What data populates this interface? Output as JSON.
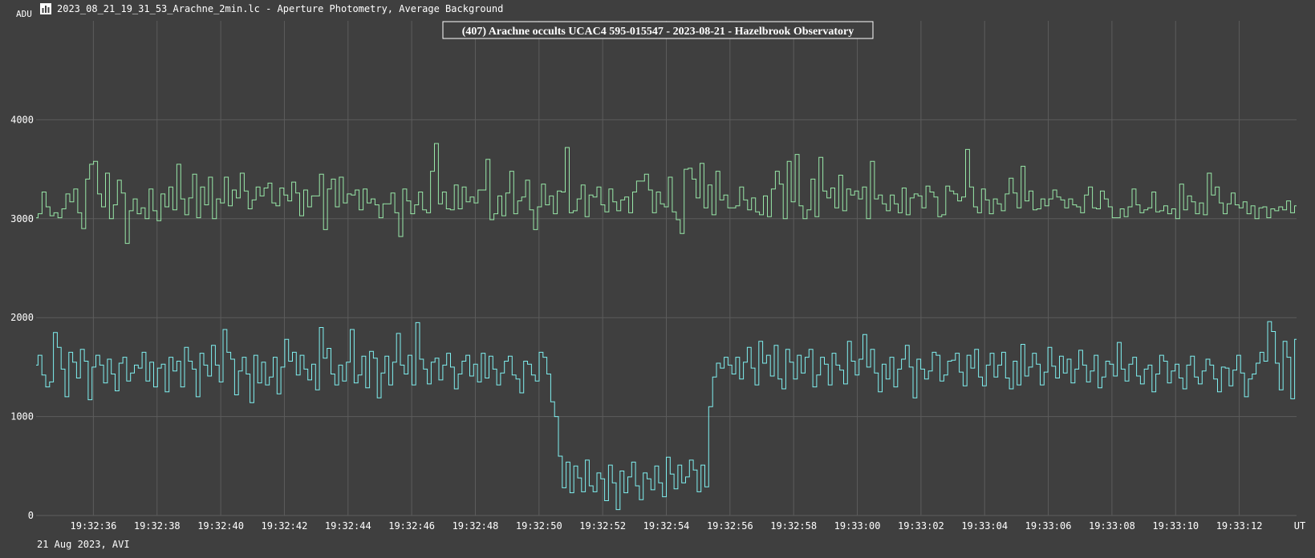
{
  "window": {
    "title": "2023_08_21_19_31_53_Arachne_2min.lc - Aperture Photometry, Average Background",
    "footer": "21 Aug 2023, AVI"
  },
  "icons": {
    "app_icon": "lightcurve-chart-icon"
  },
  "colors": {
    "background": "#3f3f3f",
    "grid": "#5c5c5c",
    "series_target": "#7ff0f0",
    "series_comparison": "#98e8a8",
    "text": "#ffffff"
  },
  "chart_data": {
    "type": "line",
    "title": "(407) Arachne occults UCAC4 595-015547 - 2023-08-21 - Hazelbrook Observatory",
    "ylabel": "ADU",
    "xlabel": "UT",
    "ylim": [
      0,
      5000
    ],
    "xlim": [
      "19:32:34.2",
      "19:33:13.8"
    ],
    "y_ticks": [
      0,
      1000,
      2000,
      3000,
      4000
    ],
    "x_ticks": [
      "19:32:36",
      "19:32:38",
      "19:32:40",
      "19:32:42",
      "19:32:44",
      "19:32:46",
      "19:32:48",
      "19:32:50",
      "19:32:52",
      "19:32:54",
      "19:32:56",
      "19:32:58",
      "19:33:00",
      "19:33:02",
      "19:33:04",
      "19:33:06",
      "19:33:08",
      "19:33:10",
      "19:33:12"
    ],
    "grid": true,
    "series": [
      {
        "key": "comparison",
        "x_start": "19:32:34.2",
        "x_end": "19:33:13.8",
        "values": [
          3010,
          3050,
          3270,
          3120,
          3030,
          3060,
          3010,
          3100,
          3250,
          3170,
          3300,
          3060,
          2900,
          3400,
          3550,
          3580,
          3250,
          3120,
          3460,
          3000,
          3140,
          3390,
          3260,
          2750,
          3080,
          3200,
          3050,
          3110,
          3000,
          3300,
          3080,
          2980,
          3250,
          3120,
          3320,
          3090,
          3550,
          3200,
          3040,
          3210,
          3450,
          3010,
          3320,
          3140,
          3420,
          3000,
          3200,
          3160,
          3420,
          3130,
          3290,
          3210,
          3460,
          3280,
          3100,
          3190,
          3320,
          3230,
          3310,
          3360,
          3160,
          3130,
          3310,
          3240,
          3180,
          3370,
          3260,
          3030,
          3290,
          3120,
          3230,
          3230,
          3450,
          2890,
          3300,
          3400,
          3120,
          3420,
          3160,
          3250,
          3240,
          3290,
          3090,
          3300,
          3160,
          3200,
          3140,
          3010,
          3150,
          3150,
          3260,
          3060,
          2820,
          3300,
          3180,
          3050,
          3140,
          3270,
          3090,
          3060,
          3480,
          3760,
          3150,
          3270,
          3100,
          3090,
          3340,
          3100,
          3320,
          3170,
          3220,
          3160,
          3290,
          3290,
          3600,
          2990,
          3050,
          3230,
          3030,
          3260,
          3480,
          3050,
          3180,
          3220,
          3390,
          3090,
          2890,
          3120,
          3350,
          3140,
          3230,
          3050,
          3280,
          3270,
          3720,
          3060,
          3080,
          3200,
          3340,
          3020,
          3240,
          3220,
          3320,
          3140,
          3070,
          3300,
          3170,
          3080,
          3190,
          3220,
          3060,
          3270,
          3380,
          3380,
          3450,
          3290,
          3060,
          3270,
          3150,
          3120,
          3420,
          3070,
          2990,
          2850,
          3500,
          3510,
          3400,
          3210,
          3560,
          3110,
          3340,
          3040,
          3480,
          3190,
          3240,
          3110,
          3110,
          3130,
          3320,
          3190,
          3090,
          3210,
          3070,
          3040,
          3230,
          3020,
          3300,
          3480,
          3350,
          3000,
          3580,
          3170,
          3650,
          3130,
          3000,
          3090,
          3400,
          3020,
          3620,
          3280,
          3210,
          3310,
          3110,
          3440,
          3080,
          3300,
          3240,
          3280,
          3200,
          3320,
          3000,
          3580,
          3200,
          3240,
          3150,
          3080,
          3240,
          3150,
          3060,
          3310,
          3040,
          3210,
          3250,
          3230,
          3110,
          3330,
          3270,
          3220,
          3020,
          3040,
          3330,
          3280,
          3250,
          3180,
          3220,
          3700,
          3320,
          3120,
          3060,
          3300,
          3190,
          3050,
          3200,
          3150,
          3080,
          3250,
          3410,
          3260,
          3110,
          3530,
          3180,
          3280,
          3090,
          3100,
          3200,
          3130,
          3200,
          3290,
          3220,
          3190,
          3110,
          3200,
          3140,
          3120,
          3060,
          3240,
          3320,
          3110,
          3100,
          3280,
          3200,
          3120,
          3010,
          3010,
          3100,
          3020,
          3120,
          3300,
          3140,
          3060,
          3090,
          3110,
          3270,
          3070,
          3080,
          3130,
          3050,
          3100,
          3000,
          3350,
          3090,
          3230,
          3170,
          3050,
          3160,
          3040,
          3460,
          3240,
          3320,
          3160,
          3050,
          3150,
          3260,
          3140,
          3110,
          3170,
          3050,
          3130,
          3000,
          3110,
          3120,
          3010,
          3100,
          3080,
          3120,
          3090,
          3180,
          3060,
          3130
        ]
      },
      {
        "key": "target",
        "x_start": "19:32:34.2",
        "x_end": "19:33:13.8",
        "values": [
          1520,
          1620,
          1420,
          1300,
          1350,
          1850,
          1700,
          1480,
          1200,
          1650,
          1550,
          1390,
          1680,
          1560,
          1170,
          1500,
          1620,
          1520,
          1340,
          1580,
          1430,
          1260,
          1540,
          1600,
          1360,
          1440,
          1520,
          1490,
          1650,
          1360,
          1550,
          1300,
          1490,
          1530,
          1250,
          1600,
          1460,
          1560,
          1300,
          1700,
          1560,
          1480,
          1200,
          1640,
          1520,
          1410,
          1720,
          1520,
          1350,
          1880,
          1650,
          1580,
          1220,
          1460,
          1600,
          1430,
          1140,
          1620,
          1340,
          1550,
          1320,
          1400,
          1600,
          1230,
          1500,
          1780,
          1560,
          1650,
          1420,
          1620,
          1480,
          1370,
          1530,
          1270,
          1900,
          1590,
          1690,
          1430,
          1320,
          1520,
          1360,
          1550,
          1880,
          1340,
          1420,
          1610,
          1290,
          1660,
          1590,
          1190,
          1440,
          1610,
          1320,
          1550,
          1840,
          1520,
          1430,
          1620,
          1320,
          1950,
          1580,
          1480,
          1330,
          1550,
          1590,
          1370,
          1520,
          1640,
          1500,
          1280,
          1430,
          1560,
          1620,
          1410,
          1530,
          1350,
          1640,
          1390,
          1610,
          1480,
          1320,
          1440,
          1560,
          1610,
          1420,
          1380,
          1240,
          1560,
          1530,
          1420,
          1360,
          1650,
          1600,
          1430,
          1150,
          1000,
          600,
          280,
          540,
          230,
          500,
          380,
          240,
          560,
          300,
          240,
          430,
          370,
          150,
          510,
          330,
          60,
          450,
          230,
          390,
          540,
          300,
          160,
          430,
          370,
          260,
          500,
          330,
          190,
          590,
          420,
          270,
          510,
          330,
          390,
          560,
          460,
          240,
          510,
          290,
          1100,
          1400,
          1540,
          1490,
          1600,
          1520,
          1430,
          1600,
          1380,
          1550,
          1700,
          1490,
          1320,
          1760,
          1540,
          1620,
          1410,
          1720,
          1380,
          1280,
          1680,
          1550,
          1380,
          1620,
          1440,
          1600,
          1680,
          1300,
          1420,
          1600,
          1530,
          1320,
          1640,
          1520,
          1470,
          1330,
          1760,
          1560,
          1420,
          1580,
          1830,
          1500,
          1680,
          1440,
          1250,
          1530,
          1380,
          1600,
          1300,
          1480,
          1580,
          1720,
          1500,
          1190,
          1580,
          1480,
          1380,
          1460,
          1650,
          1620,
          1360,
          1420,
          1560,
          1570,
          1640,
          1450,
          1310,
          1620,
          1490,
          1680,
          1400,
          1310,
          1520,
          1640,
          1400,
          1520,
          1650,
          1390,
          1280,
          1560,
          1320,
          1730,
          1410,
          1500,
          1640,
          1530,
          1320,
          1450,
          1700,
          1510,
          1390,
          1610,
          1440,
          1580,
          1340,
          1480,
          1670,
          1520,
          1350,
          1460,
          1620,
          1290,
          1400,
          1560,
          1530,
          1410,
          1750,
          1480,
          1360,
          1530,
          1600,
          1410,
          1330,
          1480,
          1520,
          1250,
          1430,
          1620,
          1560,
          1340,
          1460,
          1530,
          1390,
          1280,
          1520,
          1610,
          1400,
          1330,
          1460,
          1580,
          1520,
          1380,
          1250,
          1500,
          1490,
          1310,
          1470,
          1620,
          1440,
          1200,
          1380,
          1430,
          1540,
          1650,
          1560,
          1960,
          1860,
          1540,
          1270,
          1760,
          1600,
          1180,
          1780
        ]
      }
    ]
  }
}
